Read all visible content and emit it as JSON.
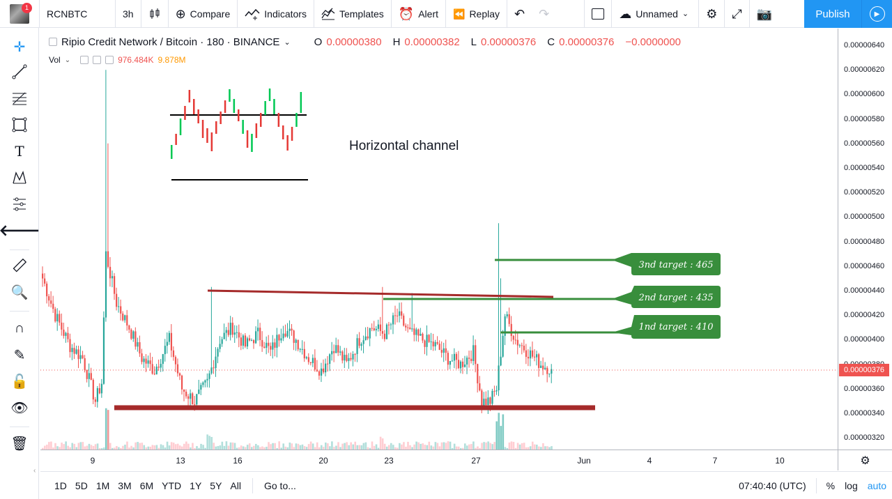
{
  "topbar": {
    "notification_count": "1",
    "symbol": "RCNBTC",
    "interval": "3h",
    "compare_label": "Compare",
    "indicators_label": "Indicators",
    "templates_label": "Templates",
    "alert_label": "Alert",
    "replay_label": "Replay",
    "layout_name": "Unnamed",
    "publish_label": "Publish"
  },
  "legend": {
    "title": "Ripio Credit Network / Bitcoin · 180 · BINANCE",
    "o_key": "O",
    "o_val": "0.00000380",
    "h_key": "H",
    "h_val": "0.00000382",
    "l_key": "L",
    "l_val": "0.00000376",
    "c_key": "C",
    "c_val": "0.00000376",
    "change": "−0.0000000",
    "vol_label": "Vol",
    "vol_val1": "976.484K",
    "vol_val2": "9.878M"
  },
  "annotations": {
    "channel_label": "Horizontal channel",
    "target3": "3nd target : 465",
    "target2": "2nd target : 435",
    "target1": "1nd target : 410"
  },
  "price_scale": {
    "ticks": [
      "0.00000640",
      "0.00000620",
      "0.00000600",
      "0.00000580",
      "0.00000560",
      "0.00000540",
      "0.00000520",
      "0.00000500",
      "0.00000480",
      "0.00000460",
      "0.00000440",
      "0.00000420",
      "0.00000400",
      "0.00000380",
      "0.00000360",
      "0.00000340",
      "0.00000320"
    ],
    "current": "0.00000376"
  },
  "time_scale": {
    "ticks": [
      "9",
      "13",
      "16",
      "20",
      "23",
      "27",
      "Jun",
      "4",
      "7",
      "10"
    ]
  },
  "bottombar": {
    "ranges": [
      "1D",
      "5D",
      "1M",
      "3M",
      "6M",
      "YTD",
      "1Y",
      "5Y",
      "All"
    ],
    "goto_label": "Go to...",
    "clock": "07:40:40 (UTC)",
    "percent_label": "%",
    "log_label": "log",
    "auto_label": "auto"
  },
  "colors": {
    "up": "#26a69a",
    "down": "#ef5350",
    "support": "#a52a2a",
    "target_green": "#388e3c",
    "accent": "#2196f3"
  },
  "chart_data": {
    "type": "candlestick",
    "ylim": [
      3.1e-06,
      6.5e-06
    ],
    "anchor_closes": [
      [
        0,
        4.5e-06
      ],
      [
        6,
        4.2e-06
      ],
      [
        13,
        3.95e-06
      ],
      [
        19,
        3.85e-06
      ],
      [
        25,
        3.5e-06
      ],
      [
        28,
        3.65e-06
      ],
      [
        30,
        4.7e-06
      ],
      [
        35,
        4.3e-06
      ],
      [
        41,
        4.1e-06
      ],
      [
        47,
        3.85e-06
      ],
      [
        53,
        3.75e-06
      ],
      [
        60,
        4e-06
      ],
      [
        66,
        3.6e-06
      ],
      [
        72,
        3.5e-06
      ],
      [
        78,
        3.65e-06
      ],
      [
        84,
        4e-06
      ],
      [
        90,
        4.1e-06
      ],
      [
        96,
        3.95e-06
      ],
      [
        102,
        4.05e-06
      ],
      [
        108,
        3.9e-06
      ],
      [
        114,
        4.1e-06
      ],
      [
        120,
        4e-06
      ],
      [
        126,
        3.85e-06
      ],
      [
        132,
        3.75e-06
      ],
      [
        138,
        3.95e-06
      ],
      [
        144,
        3.8e-06
      ],
      [
        150,
        4e-06
      ],
      [
        156,
        4.1e-06
      ],
      [
        162,
        4.05e-06
      ],
      [
        168,
        4.2e-06
      ],
      [
        174,
        4.05e-06
      ],
      [
        180,
        4e-06
      ],
      [
        186,
        3.95e-06
      ],
      [
        192,
        3.85e-06
      ],
      [
        198,
        3.8e-06
      ],
      [
        204,
        3.9e-06
      ],
      [
        208,
        3.5e-06
      ],
      [
        212,
        3.5e-06
      ],
      [
        215,
        3.6e-06
      ],
      [
        219,
        4.2e-06
      ],
      [
        224,
        4e-06
      ],
      [
        230,
        3.9e-06
      ],
      [
        236,
        3.8e-06
      ],
      [
        241,
        3.76e-06
      ]
    ],
    "volume_levels": [
      0.2,
      0.5,
      1.0,
      0.5,
      0.3
    ]
  }
}
